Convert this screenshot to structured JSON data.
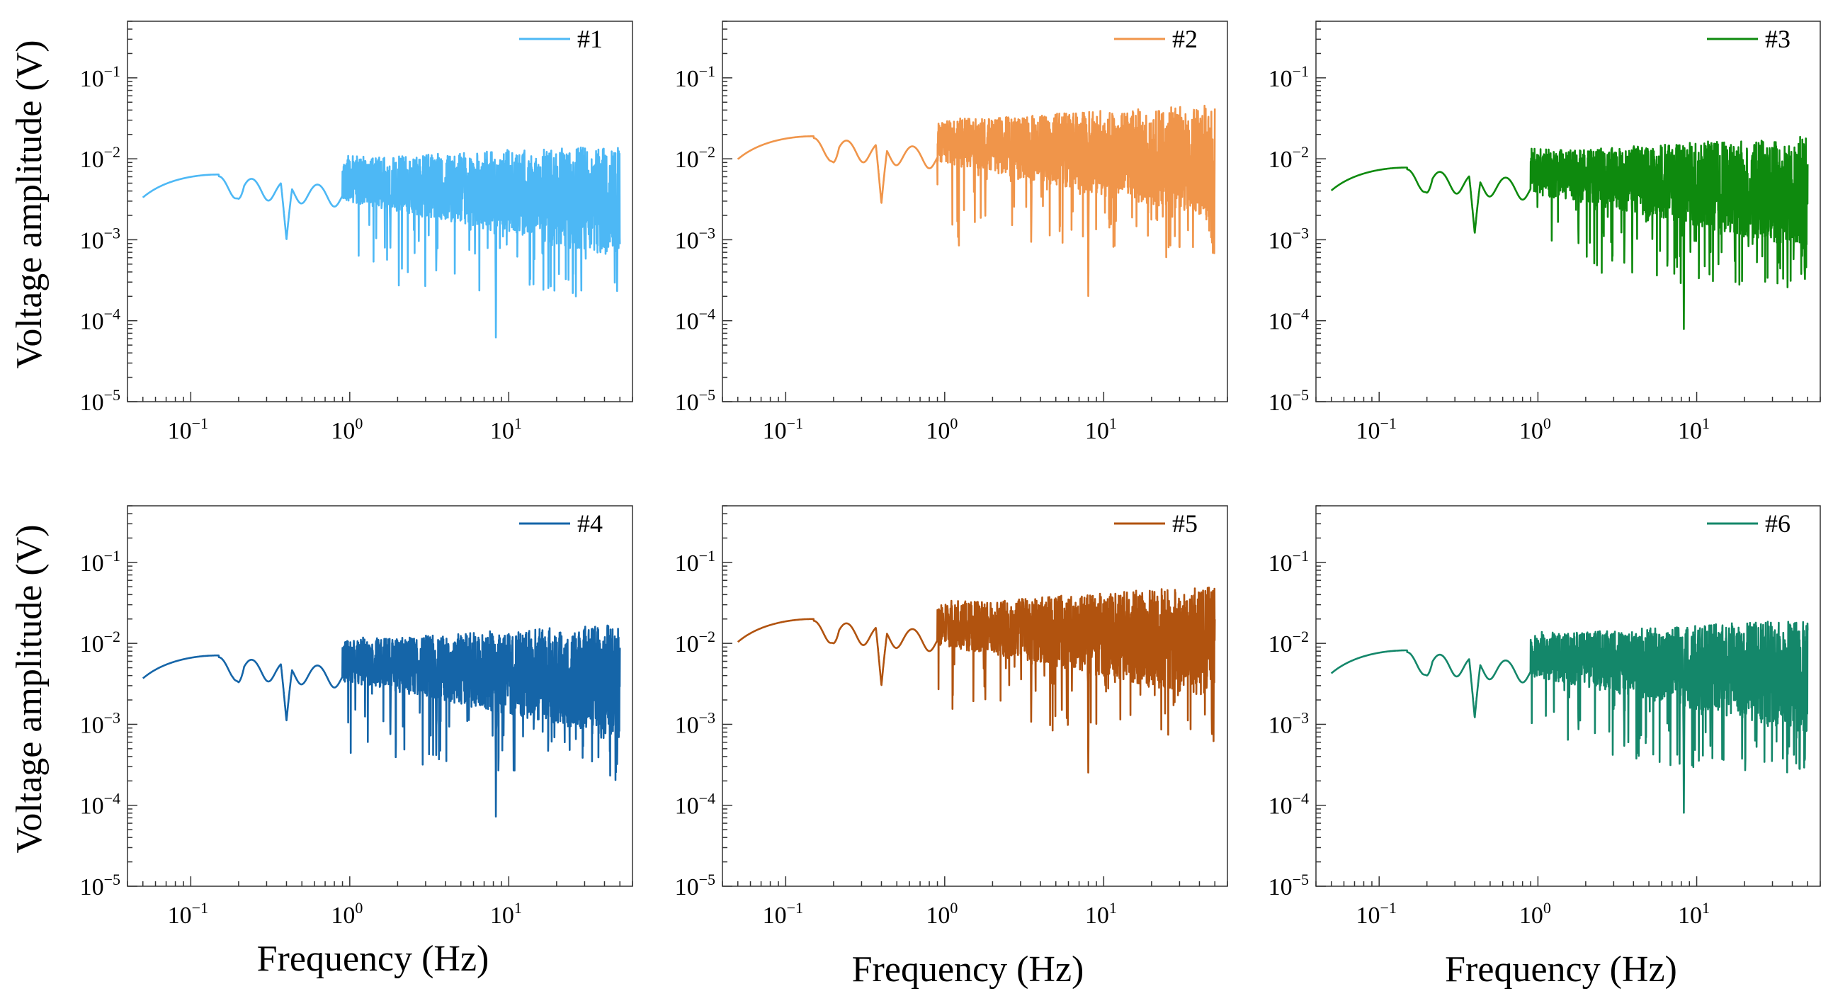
{
  "figure": {
    "ylabel": "Voltage amplitude (V)",
    "xlabel": "Frequency (Hz)"
  },
  "chart_data": [
    {
      "type": "line",
      "panel": "top-left",
      "xscale": "log",
      "yscale": "log",
      "xlim": [
        0.04,
        60
      ],
      "ylim": [
        1e-05,
        0.5
      ],
      "xticks": [
        0.1,
        1,
        10
      ],
      "yticks": [
        1e-05,
        0.0001,
        0.001,
        0.01,
        0.1
      ],
      "series": [
        {
          "name": "#1",
          "color": "#4DB8F5",
          "low_freq_level": 0.0064,
          "high_freq_level": 0.0035,
          "dips": [
            [
              0.2,
              0.0032
            ],
            [
              0.4,
              0.001
            ],
            [
              1.8,
              0.0007
            ],
            [
              3.5,
              0.0004
            ],
            [
              8.3,
              6e-05
            ],
            [
              48,
              0.0002
            ]
          ]
        }
      ],
      "legend": "top-right",
      "ylabel": "Voltage amplitude (V)",
      "xlabel": ""
    },
    {
      "type": "line",
      "panel": "top-middle",
      "xscale": "log",
      "yscale": "log",
      "xlim": [
        0.04,
        60
      ],
      "ylim": [
        1e-05,
        0.5
      ],
      "xticks": [
        0.1,
        1,
        10
      ],
      "yticks": [
        1e-05,
        0.0001,
        0.001,
        0.01,
        0.1
      ],
      "series": [
        {
          "name": "#2",
          "color": "#F0954A",
          "low_freq_level": 0.019,
          "high_freq_level": 0.011,
          "dips": [
            [
              0.2,
              0.009
            ],
            [
              0.4,
              0.0028
            ],
            [
              1.8,
              0.0018
            ],
            [
              3.5,
              0.0009
            ],
            [
              8.0,
              0.00017
            ],
            [
              48,
              0.0006
            ]
          ]
        }
      ],
      "legend": "top-right",
      "ylabel": "",
      "xlabel": ""
    },
    {
      "type": "line",
      "panel": "top-right",
      "xscale": "log",
      "yscale": "log",
      "xlim": [
        0.04,
        60
      ],
      "ylim": [
        1e-05,
        0.5
      ],
      "xticks": [
        0.1,
        1,
        10
      ],
      "yticks": [
        1e-05,
        0.0001,
        0.001,
        0.01,
        0.1
      ],
      "series": [
        {
          "name": "#3",
          "color": "#0E8A0E",
          "low_freq_level": 0.0078,
          "high_freq_level": 0.0045,
          "dips": [
            [
              0.2,
              0.0038
            ],
            [
              0.4,
              0.0012
            ],
            [
              1.8,
              0.0008
            ],
            [
              3.5,
              0.0005
            ],
            [
              8.3,
              7e-05
            ],
            [
              48,
              0.00024
            ]
          ]
        }
      ],
      "legend": "top-right",
      "ylabel": "",
      "xlabel": ""
    },
    {
      "type": "line",
      "panel": "bottom-left",
      "xscale": "log",
      "yscale": "log",
      "xlim": [
        0.04,
        60
      ],
      "ylim": [
        1e-05,
        0.5
      ],
      "xticks": [
        0.1,
        1,
        10
      ],
      "yticks": [
        1e-05,
        0.0001,
        0.001,
        0.01,
        0.1
      ],
      "series": [
        {
          "name": "#4",
          "color": "#1565A8",
          "low_freq_level": 0.0071,
          "high_freq_level": 0.004,
          "dips": [
            [
              0.2,
              0.0033
            ],
            [
              0.4,
              0.0011
            ],
            [
              1.8,
              0.0007
            ],
            [
              3.5,
              0.0004
            ],
            [
              8.3,
              6.5e-05
            ],
            [
              48,
              0.00023
            ]
          ]
        }
      ],
      "legend": "top-right",
      "ylabel": "Voltage amplitude (V)",
      "xlabel": "Frequency (Hz)"
    },
    {
      "type": "line",
      "panel": "bottom-middle",
      "xscale": "log",
      "yscale": "log",
      "xlim": [
        0.04,
        60
      ],
      "ylim": [
        1e-05,
        0.5
      ],
      "xticks": [
        0.1,
        1,
        10
      ],
      "yticks": [
        1e-05,
        0.0001,
        0.001,
        0.01,
        0.1
      ],
      "series": [
        {
          "name": "#5",
          "color": "#B1530F",
          "low_freq_level": 0.02,
          "high_freq_level": 0.012,
          "dips": [
            [
              0.2,
              0.01
            ],
            [
              0.4,
              0.003
            ],
            [
              1.8,
              0.002
            ],
            [
              3.5,
              0.001
            ],
            [
              8.0,
              0.00018
            ],
            [
              48,
              0.0006
            ]
          ]
        }
      ],
      "legend": "top-right",
      "ylabel": "",
      "xlabel": "Frequency (Hz)"
    },
    {
      "type": "line",
      "panel": "bottom-right",
      "xscale": "log",
      "yscale": "log",
      "xlim": [
        0.04,
        60
      ],
      "ylim": [
        1e-05,
        0.5
      ],
      "xticks": [
        0.1,
        1,
        10
      ],
      "yticks": [
        1e-05,
        0.0001,
        0.001,
        0.01,
        0.1
      ],
      "series": [
        {
          "name": "#6",
          "color": "#14876A",
          "low_freq_level": 0.0082,
          "high_freq_level": 0.0046,
          "dips": [
            [
              0.2,
              0.004
            ],
            [
              0.4,
              0.0012
            ],
            [
              1.8,
              0.0008
            ],
            [
              3.5,
              0.0005
            ],
            [
              8.3,
              7e-05
            ],
            [
              48,
              0.00025
            ]
          ]
        }
      ],
      "legend": "top-right",
      "ylabel": "",
      "xlabel": "Frequency (Hz)"
    }
  ]
}
